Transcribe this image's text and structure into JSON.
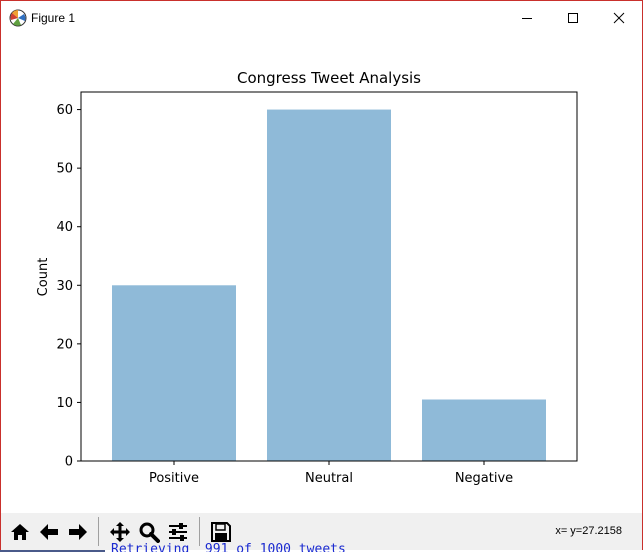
{
  "window": {
    "title": "Figure 1"
  },
  "toolbar": {
    "buttons": [
      {
        "name": "home-icon",
        "tooltip": "Home"
      },
      {
        "name": "back-arrow-icon",
        "tooltip": "Back"
      },
      {
        "name": "forward-arrow-icon",
        "tooltip": "Forward"
      },
      {
        "name": "pan-icon",
        "tooltip": "Pan"
      },
      {
        "name": "zoom-icon",
        "tooltip": "Zoom"
      },
      {
        "name": "configure-subplots-icon",
        "tooltip": "Subplots"
      },
      {
        "name": "save-icon",
        "tooltip": "Save"
      }
    ],
    "coordinates": "x= y=27.2158"
  },
  "console": {
    "text": "Retrieving  991 of 1000 tweets"
  },
  "colors": {
    "bar": "#8fbad8",
    "window_border": "#c9302c"
  },
  "chart_data": {
    "type": "bar",
    "title": "Congress Tweet Analysis",
    "xlabel": "",
    "ylabel": "Count",
    "categories": [
      "Positive",
      "Neutral",
      "Negative"
    ],
    "values": [
      30,
      60,
      10.5
    ],
    "ylim": [
      0,
      63
    ],
    "yticks": [
      0,
      10,
      20,
      30,
      40,
      50,
      60
    ],
    "grid": false
  }
}
